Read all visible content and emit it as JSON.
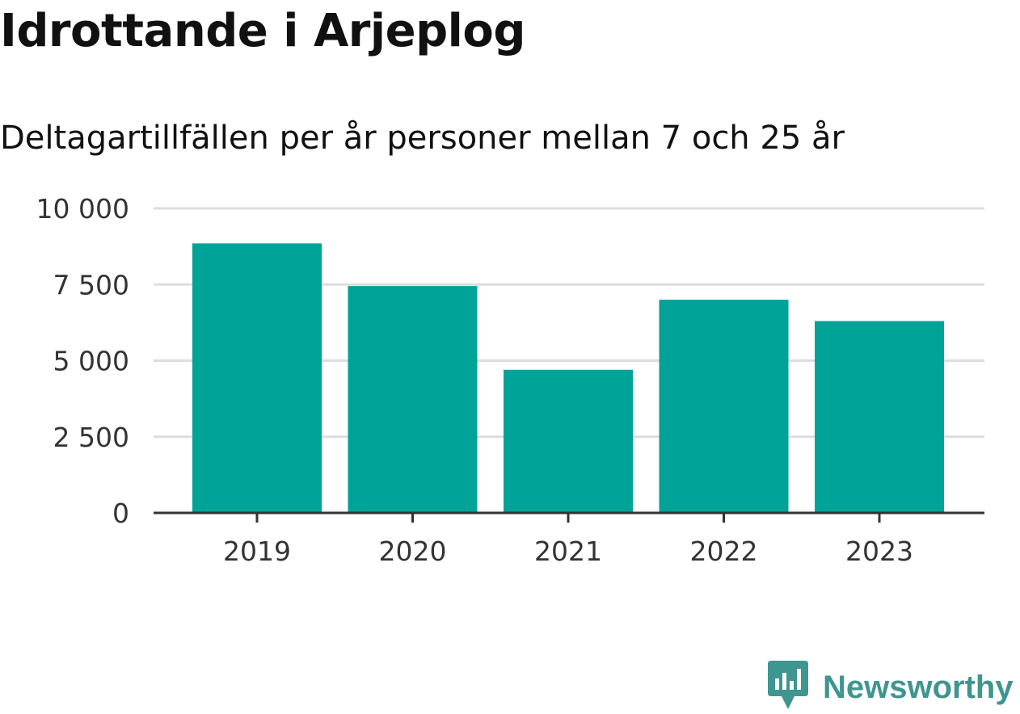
{
  "header": {
    "title": "Idrottande i Arjeplog",
    "subtitle": "Deltagartillfällen per år personer mellan 7 och 25 år"
  },
  "brand": {
    "name": "Newsworthy",
    "icon": "newsworthy-logo-icon",
    "color": "#3f9590"
  },
  "colors": {
    "bar": "#00a398",
    "grid": "#dddddd",
    "axis": "#333333"
  },
  "chart_data": {
    "type": "bar",
    "categories": [
      "2019",
      "2020",
      "2021",
      "2022",
      "2023"
    ],
    "values": [
      8850,
      7450,
      4700,
      7000,
      6300
    ],
    "title": "Idrottande i Arjeplog",
    "subtitle": "Deltagartillfällen per år personer mellan 7 och 25 år",
    "xlabel": "",
    "ylabel": "",
    "ylim": [
      0,
      10000
    ],
    "yticks": [
      0,
      2500,
      5000,
      7500,
      10000
    ],
    "ytick_labels": [
      "0",
      "2 500",
      "5 000",
      "7 500",
      "10 000"
    ],
    "grid": true,
    "legend": "none"
  }
}
